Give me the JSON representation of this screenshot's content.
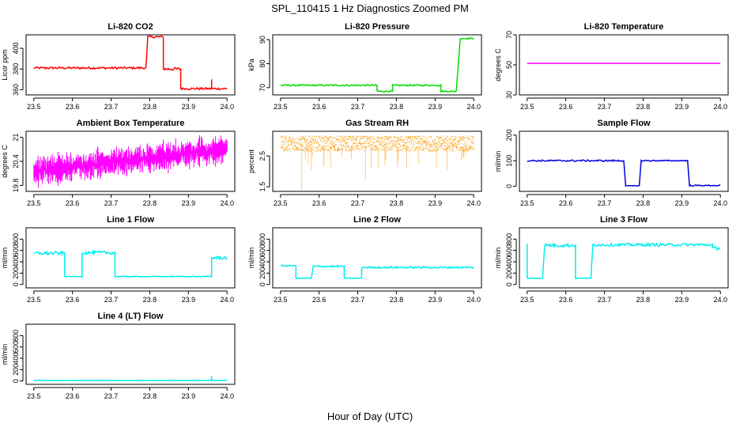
{
  "figure": {
    "title": "SPL_110415  1 Hz Diagnostics Zoomed PM",
    "xlabel": "Hour of Day (UTC)"
  },
  "chart_data": [
    {
      "type": "line",
      "title": "Li-820 CO2",
      "ylabel": "Licor ppm",
      "color": "#ff0000",
      "xlim": [
        23.48,
        24.02
      ],
      "ylim": [
        355,
        413
      ],
      "xticks": [
        "23.5",
        "23.6",
        "23.7",
        "23.8",
        "23.9",
        "24.0"
      ],
      "yticks": [
        360,
        380,
        400
      ],
      "style": "line",
      "segments": [
        [
          23.5,
          23.79,
          381,
          1
        ],
        [
          23.795,
          23.835,
          411,
          1
        ],
        [
          23.835,
          23.88,
          380,
          1.5
        ],
        [
          23.88,
          24.0,
          361,
          1
        ]
      ],
      "spikes": [
        [
          23.96,
          370
        ]
      ]
    },
    {
      "type": "line",
      "title": "Li-820 Pressure",
      "ylabel": "kPa",
      "color": "#00dd00",
      "xlim": [
        23.48,
        24.02
      ],
      "ylim": [
        67,
        92
      ],
      "xticks": [
        "23.5",
        "23.6",
        "23.7",
        "23.8",
        "23.9",
        "24.0"
      ],
      "yticks": [
        70,
        80,
        90
      ],
      "style": "line",
      "segments": [
        [
          23.5,
          23.75,
          71,
          0.3
        ],
        [
          23.75,
          23.79,
          68.5,
          0.3
        ],
        [
          23.79,
          23.915,
          71,
          0.3
        ],
        [
          23.915,
          23.955,
          68.5,
          0.3
        ],
        [
          23.965,
          24.0,
          90.5,
          0.3
        ]
      ],
      "spikes": []
    },
    {
      "type": "line",
      "title": "Li-820 Temperature",
      "ylabel": "degrees C",
      "color": "#ff00ff",
      "xlim": [
        23.48,
        24.02
      ],
      "ylim": [
        30,
        70
      ],
      "xticks": [
        "23.5",
        "23.6",
        "23.7",
        "23.8",
        "23.9",
        "24.0"
      ],
      "yticks": [
        30,
        50,
        70
      ],
      "style": "line",
      "segments": [
        [
          23.5,
          24.0,
          51,
          0
        ]
      ],
      "spikes": []
    },
    {
      "type": "line",
      "title": "Ambient Box Temperature",
      "ylabel": "degrees C",
      "color": "#ff00ff",
      "xlim": [
        23.48,
        24.02
      ],
      "ylim": [
        19.65,
        21.15
      ],
      "xticks": [
        "23.5",
        "23.6",
        "23.7",
        "23.8",
        "23.9",
        "24.0"
      ],
      "yticks": [
        19.8,
        20.4,
        21.0
      ],
      "style": "noisy",
      "trend": [
        [
          23.5,
          20.15
        ],
        [
          24.0,
          20.7
        ]
      ],
      "noise": 0.35,
      "segments": [],
      "spikes": []
    },
    {
      "type": "scatter",
      "title": "Gas Stream RH",
      "ylabel": "percent",
      "color": "#ff9900",
      "xlim": [
        23.48,
        24.02
      ],
      "ylim": [
        1.35,
        3.3
      ],
      "xticks": [
        "23.5",
        "23.6",
        "23.7",
        "23.8",
        "23.9",
        "24.0"
      ],
      "yticks": [
        1.5,
        2.5
      ],
      "style": "dots",
      "trend": [
        [
          23.5,
          2.9
        ],
        [
          24.0,
          2.9
        ]
      ],
      "noise": 0.35,
      "segments": [],
      "spikes": [
        [
          23.555,
          1.4
        ],
        [
          23.72,
          1.75
        ],
        [
          23.735,
          2.1
        ],
        [
          23.63,
          2.15
        ],
        [
          23.77,
          2.2
        ]
      ]
    },
    {
      "type": "line",
      "title": "Sample Flow",
      "ylabel": "ml/min",
      "color": "#0000dd",
      "xlim": [
        23.48,
        24.02
      ],
      "ylim": [
        -20,
        215
      ],
      "xticks": [
        "23.5",
        "23.6",
        "23.7",
        "23.8",
        "23.9",
        "24.0"
      ],
      "yticks": [
        0,
        100,
        200
      ],
      "style": "line",
      "segments": [
        [
          23.5,
          23.75,
          100,
          3
        ],
        [
          23.755,
          23.79,
          2,
          1
        ],
        [
          23.795,
          23.915,
          100,
          2
        ],
        [
          23.92,
          24.0,
          3,
          2
        ]
      ],
      "spikes": []
    },
    {
      "type": "line",
      "title": "Line 1 Flow",
      "ylabel": "ml/min",
      "color": "#00eeee",
      "xlim": [
        23.48,
        24.02
      ],
      "ylim": [
        -60,
        1000
      ],
      "xticks": [
        "23.5",
        "23.6",
        "23.7",
        "23.8",
        "23.9",
        "24.0"
      ],
      "yticks": [
        0,
        200,
        400,
        600,
        800
      ],
      "style": "line",
      "segments": [
        [
          23.5,
          23.58,
          550,
          30
        ],
        [
          23.58,
          23.625,
          140,
          5
        ],
        [
          23.625,
          23.71,
          560,
          30
        ],
        [
          23.71,
          23.96,
          140,
          8
        ],
        [
          23.96,
          24.0,
          470,
          30
        ]
      ],
      "spikes": []
    },
    {
      "type": "line",
      "title": "Line 2 Flow",
      "ylabel": "ml/min",
      "color": "#00eeee",
      "xlim": [
        23.48,
        24.02
      ],
      "ylim": [
        -60,
        1000
      ],
      "xticks": [
        "23.5",
        "23.6",
        "23.7",
        "23.8",
        "23.9",
        "24.0"
      ],
      "yticks": [
        0,
        200,
        400,
        600,
        800
      ],
      "style": "line",
      "segments": [
        [
          23.5,
          23.54,
          330,
          10
        ],
        [
          23.54,
          23.58,
          110,
          5
        ],
        [
          23.585,
          23.665,
          320,
          15
        ],
        [
          23.665,
          23.71,
          110,
          5
        ],
        [
          23.71,
          24.0,
          300,
          15
        ]
      ],
      "spikes": []
    },
    {
      "type": "line",
      "title": "Line 3 Flow",
      "ylabel": "ml/min",
      "color": "#00eeee",
      "xlim": [
        23.48,
        24.02
      ],
      "ylim": [
        -60,
        1000
      ],
      "xticks": [
        "23.5",
        "23.6",
        "23.7",
        "23.8",
        "23.9",
        "24.0"
      ],
      "yticks": [
        0,
        200,
        400,
        600,
        800
      ],
      "style": "line",
      "segments": [
        [
          23.5,
          23.54,
          110,
          5
        ],
        [
          23.545,
          23.625,
          690,
          30
        ],
        [
          23.625,
          23.665,
          110,
          5
        ],
        [
          23.67,
          23.98,
          700,
          25
        ],
        [
          23.98,
          24.0,
          640,
          30
        ]
      ],
      "spikes": [
        [
          23.5,
          720
        ]
      ]
    },
    {
      "type": "line",
      "title": "Line 4 (LT) Flow",
      "ylabel": "ml/min",
      "color": "#00eeee",
      "xlim": [
        23.48,
        24.02
      ],
      "ylim": [
        -60,
        1000
      ],
      "xticks": [
        "23.5",
        "23.6",
        "23.7",
        "23.8",
        "23.9",
        "24.0"
      ],
      "yticks": [
        0,
        200,
        400,
        600,
        800
      ],
      "style": "line",
      "segments": [
        [
          23.5,
          24.0,
          8,
          3
        ]
      ],
      "spikes": [
        [
          23.96,
          90
        ]
      ]
    }
  ]
}
